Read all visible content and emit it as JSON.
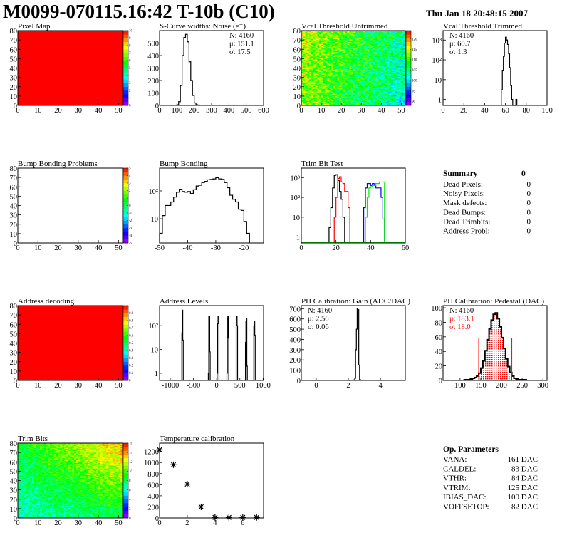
{
  "header": {
    "title": "M0099-070115.16:42 T-10b (C10)",
    "timestamp": "Thu Jan 18 20:48:15 2007"
  },
  "chart_data": [
    {
      "type": "heatmap",
      "title": "Pixel Map",
      "xlim": [
        0,
        52
      ],
      "ylim": [
        0,
        80
      ],
      "xticks": [
        0,
        10,
        20,
        30,
        40,
        50
      ],
      "yticks": [
        0,
        10,
        20,
        30,
        40,
        50,
        60,
        70,
        80
      ],
      "zlim": [
        0,
        10
      ],
      "zticks": [
        0,
        1,
        2,
        3,
        4,
        5,
        6,
        7,
        8,
        9,
        10
      ],
      "fill_value": 10
    },
    {
      "type": "histogram",
      "title": "S-Curve widths: Noise (e⁻)",
      "xlim": [
        0,
        600
      ],
      "ylim": [
        0,
        600
      ],
      "log_y": false,
      "xticks": [
        0,
        100,
        200,
        300,
        400,
        500,
        600
      ],
      "yticks": [
        0,
        100,
        200,
        300,
        400,
        500
      ],
      "stats_position": "top-right",
      "stats": [
        "N: 4160",
        "μ: 151.1",
        "σ: 17.5"
      ],
      "series": [
        {
          "color": "#000000",
          "bin_start": 100,
          "bin_width": 10,
          "values": [
            5,
            30,
            160,
            400,
            545,
            570,
            510,
            350,
            200,
            80,
            20,
            5,
            3
          ]
        }
      ]
    },
    {
      "type": "heatmap",
      "title": "Vcal Threshold Untrimmed",
      "xlim": [
        0,
        52
      ],
      "ylim": [
        0,
        80
      ],
      "xticks": [
        0,
        10,
        20,
        30,
        40,
        50
      ],
      "yticks": [
        0,
        10,
        20,
        30,
        40,
        50,
        60,
        70,
        80
      ],
      "zlim": [
        88,
        124
      ],
      "zticks": [
        90,
        95,
        100,
        105,
        110,
        115,
        120
      ]
    },
    {
      "type": "histogram",
      "title": "Vcal Threshold Trimmed",
      "xlim": [
        0,
        100
      ],
      "ylim": [
        0.5,
        3000
      ],
      "log_y": true,
      "xticks": [
        0,
        20,
        40,
        60,
        80,
        100
      ],
      "ytick_values": [
        1,
        10,
        100,
        1000
      ],
      "ytick_labels": [
        "1",
        "10",
        "10²",
        "10³"
      ],
      "stats_position": "top-left",
      "stats": [
        "N: 4160",
        "μ: 60.7",
        "σ:  1.3"
      ],
      "series": [
        {
          "color": "#000000",
          "bin_start": 56,
          "bin_width": 1,
          "values": [
            3,
            30,
            150,
            700,
            1400,
            1000,
            600,
            200,
            40,
            5,
            1,
            0,
            0,
            0,
            1
          ]
        }
      ]
    },
    {
      "type": "heatmap",
      "title": "Bump Bonding Problems",
      "xlim": [
        0,
        52
      ],
      "ylim": [
        0,
        80
      ],
      "xticks": [
        0,
        10,
        20,
        30,
        40,
        50
      ],
      "yticks": [
        0,
        10,
        20,
        30,
        40,
        50,
        60,
        70,
        80
      ],
      "zlim": [
        -5,
        5
      ],
      "zticks": [
        -5,
        -4,
        -3,
        -2,
        -1,
        0,
        1,
        2,
        3,
        4,
        5
      ]
    },
    {
      "type": "histogram",
      "title": "Bump Bonding",
      "xlim": [
        -50,
        -13
      ],
      "ylim": [
        1.35,
        660
      ],
      "log_y": true,
      "xticks": [
        -50,
        -40,
        -30,
        -20
      ],
      "ytick_values": [
        10,
        100
      ],
      "ytick_labels": [
        "10",
        "10²"
      ],
      "series": [
        {
          "color": "#000000",
          "bin_start": -50,
          "bin_width": 1,
          "values": [
            3,
            13,
            30,
            30,
            40,
            60,
            90,
            115,
            95,
            90,
            95,
            80,
            110,
            150,
            160,
            200,
            220,
            250,
            260,
            270,
            300,
            270,
            260,
            200,
            130,
            70,
            50,
            40,
            22,
            20,
            8,
            3
          ]
        }
      ]
    },
    {
      "type": "histogram",
      "title": "Trim Bit Test",
      "xlim": [
        0,
        60
      ],
      "ylim": [
        0.5,
        3000
      ],
      "log_y": true,
      "xticks": [
        0,
        20,
        40,
        60
      ],
      "ytick_values": [
        1,
        10,
        100,
        1000
      ],
      "ytick_labels": [
        "1",
        "10",
        "10²",
        "10³"
      ],
      "series": [
        {
          "color": "#000000",
          "bin_start": 16,
          "bin_width": 1,
          "values": [
            3,
            30,
            300,
            1300,
            1400,
            700,
            200,
            80,
            10
          ]
        },
        {
          "color": "#ff0000",
          "bin_start": 19,
          "bin_width": 1,
          "values": [
            10,
            100,
            900,
            1100,
            600,
            500,
            200,
            200,
            30
          ]
        },
        {
          "color": "#0000ff",
          "bin_start": 36,
          "bin_width": 1,
          "values": [
            30,
            300,
            500,
            500,
            400,
            500,
            400,
            300,
            300,
            300,
            100,
            8
          ]
        },
        {
          "color": "#00ee00",
          "bin_start": 37,
          "bin_width": 1,
          "values": [
            10,
            100,
            300,
            350,
            400,
            400,
            500,
            500,
            600,
            600,
            600
          ]
        }
      ]
    },
    {
      "type": "heatmap",
      "title": "Address decoding",
      "xlim": [
        0,
        52
      ],
      "ylim": [
        0,
        80
      ],
      "xticks": [
        0,
        10,
        20,
        30,
        40,
        50
      ],
      "yticks": [
        0,
        10,
        20,
        30,
        40,
        50,
        60,
        70,
        80
      ],
      "zlim": [
        0,
        1
      ],
      "zticks": [
        0,
        0.1,
        0.2,
        0.3,
        0.4,
        0.5,
        0.6,
        0.7,
        0.8,
        0.9,
        1
      ],
      "fill_value": 1
    },
    {
      "type": "histogram",
      "title": "Address Levels",
      "xlim": [
        -1230,
        1010
      ],
      "ylim": [
        0.5,
        700
      ],
      "log_y": true,
      "xticks": [
        -1000,
        -500,
        0,
        500,
        1000
      ],
      "ytick_values": [
        1,
        10,
        100
      ],
      "ytick_labels": [
        "1",
        "10",
        "10²"
      ],
      "series": [
        {
          "color": "#000000",
          "bin_width": 10,
          "bins": [
            [
              -750,
              50
            ],
            [
              -740,
              450
            ],
            [
              -730,
              25
            ],
            [
              -180,
              1
            ],
            [
              -170,
              250
            ],
            [
              -160,
              250
            ],
            [
              -150,
              8
            ],
            [
              10,
              1
            ],
            [
              20,
              120
            ],
            [
              30,
              250
            ],
            [
              40,
              250
            ],
            [
              220,
              1
            ],
            [
              230,
              200
            ],
            [
              240,
              250
            ],
            [
              250,
              30
            ],
            [
              420,
              200
            ],
            [
              430,
              250
            ],
            [
              440,
              100
            ],
            [
              620,
              20
            ],
            [
              630,
              150
            ],
            [
              640,
              200
            ],
            [
              650,
              2
            ],
            [
              800,
              100
            ],
            [
              810,
              150
            ],
            [
              820,
              40
            ]
          ]
        }
      ]
    },
    {
      "type": "histogram",
      "title": "PH Calibration: Gain (ADC/DAC)",
      "xlim": [
        -0.93,
        5.55
      ],
      "ylim": [
        0,
        730
      ],
      "log_y": false,
      "xticks": [
        0,
        2,
        4
      ],
      "yticks": [
        0,
        100,
        200,
        300,
        400,
        500,
        600,
        700
      ],
      "stats_position": "top-left",
      "stats": [
        "N: 4160",
        "μ: 2.56",
        "σ: 0.06"
      ],
      "series": [
        {
          "color": "#000000",
          "bin_start": 2.35,
          "bin_width": 0.05,
          "values": [
            5,
            20,
            300,
            500,
            700,
            690,
            150,
            10,
            3
          ]
        }
      ]
    },
    {
      "type": "histogram",
      "title": "PH Calibration: Pedestal (DAC)",
      "xlim": [
        59,
        310
      ],
      "ylim": [
        0,
        103
      ],
      "log_y": false,
      "xticks": [
        100,
        150,
        200,
        250,
        300
      ],
      "yticks": [
        0,
        20,
        40,
        60,
        80,
        100
      ],
      "stats_position": "top-left",
      "stats": [
        "N: 4160",
        "μ: 183.1",
        "σ: 18.0"
      ],
      "stats_colors": [
        "#000000",
        "#ff0000",
        "#ff0000"
      ],
      "fit_range": [
        145,
        225
      ],
      "fit_range_marker_height": 58,
      "fit_color": "#ff0000",
      "series": [
        {
          "color": "#000000",
          "bin_start": 110,
          "bin_width": 5,
          "values": [
            1,
            1,
            1,
            2,
            3,
            4,
            6,
            10,
            17,
            27,
            41,
            56,
            71,
            83,
            91,
            93,
            85,
            74,
            59,
            44,
            30,
            19,
            11,
            6,
            3,
            2,
            1,
            1,
            1,
            1
          ]
        }
      ]
    },
    {
      "type": "heatmap",
      "title": "Trim Bits",
      "xlim": [
        0,
        52
      ],
      "ylim": [
        0,
        80
      ],
      "xticks": [
        0,
        10,
        20,
        30,
        40,
        50
      ],
      "yticks": [
        0,
        10,
        20,
        30,
        40,
        50,
        60,
        70,
        80
      ],
      "zlim": [
        0,
        16
      ],
      "zticks": [
        0,
        2,
        4,
        6,
        8,
        10,
        12,
        14,
        16
      ]
    },
    {
      "type": "scatter",
      "title": "Temperature calibration",
      "marker": "star",
      "xlim": [
        0,
        7.5
      ],
      "ylim": [
        0,
        1350
      ],
      "xticks": [
        0,
        2,
        4,
        6
      ],
      "yticks": [
        0,
        200,
        400,
        600,
        800,
        1000,
        1200
      ],
      "x": [
        0,
        1,
        2,
        3,
        4,
        5,
        6,
        7
      ],
      "y": [
        1230,
        960,
        610,
        200,
        10,
        10,
        10,
        10
      ]
    }
  ],
  "summary": {
    "title": "Summary",
    "total": "0",
    "rows": [
      {
        "label": "Dead Pixels:",
        "value": "0"
      },
      {
        "label": "Noisy Pixels:",
        "value": "0"
      },
      {
        "label": "Mask defects:",
        "value": "0"
      },
      {
        "label": "Dead Bumps:",
        "value": "0"
      },
      {
        "label": "Dead Trimbits:",
        "value": "0"
      },
      {
        "label": "Address Probl:",
        "value": "0"
      }
    ]
  },
  "op_parameters": {
    "title": "Op. Parameters",
    "rows": [
      {
        "label": "VANA:",
        "value": "161 DAC"
      },
      {
        "label": "CALDEL:",
        "value": "83 DAC"
      },
      {
        "label": "VTHR:",
        "value": "84 DAC"
      },
      {
        "label": "VTRIM:",
        "value": "125 DAC"
      },
      {
        "label": "IBIAS_DAC:",
        "value": "100 DAC"
      },
      {
        "label": "VOFFSETOP:",
        "value": "82 DAC"
      }
    ]
  }
}
